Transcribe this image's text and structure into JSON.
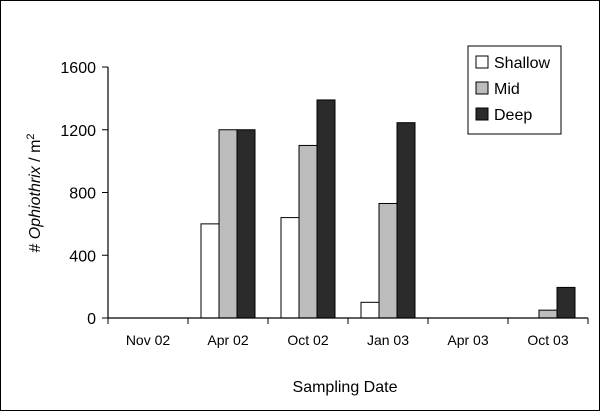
{
  "chart_data": {
    "type": "bar",
    "categories": [
      "Nov 02",
      "Apr 02",
      "Oct 02",
      "Jan 03",
      "Apr 03",
      "Oct 03"
    ],
    "series": [
      {
        "name": "Shallow",
        "color": "#ffffff",
        "values": [
          0,
          600,
          640,
          100,
          0,
          0
        ]
      },
      {
        "name": "Mid",
        "color": "#bdbdbd",
        "values": [
          0,
          1200,
          1100,
          730,
          0,
          50
        ]
      },
      {
        "name": "Deep",
        "color": "#2b2b2b",
        "values": [
          0,
          1200,
          1390,
          1245,
          0,
          195
        ]
      }
    ],
    "yticks": [
      "0",
      "400",
      "800",
      "1200",
      "1600"
    ],
    "ylim": [
      0,
      1600
    ],
    "ylabel_prefix": "# ",
    "ylabel_italic": "Ophiothrix",
    "ylabel_suffix": " / m",
    "ylabel_sup": "2",
    "xlabel": "Sampling Date",
    "legend_position": "top-right",
    "grid": false
  }
}
